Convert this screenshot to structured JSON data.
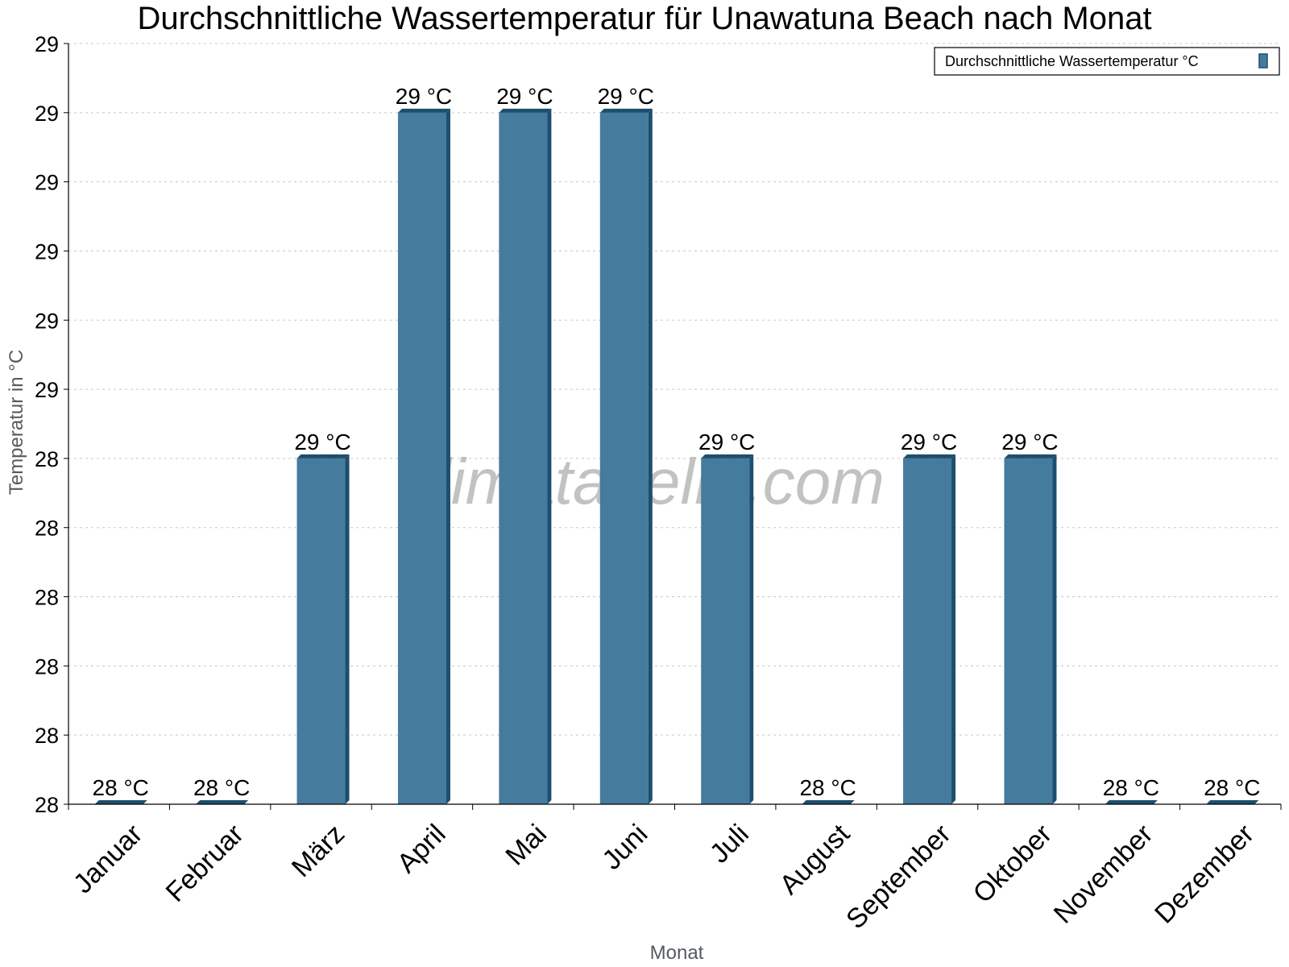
{
  "chart_data": {
    "type": "bar",
    "title": "Durchschnittliche Wassertemperatur für Unawatuna Beach nach Monat",
    "xlabel": "Monat",
    "ylabel": "Temperatur in °C",
    "categories": [
      "Januar",
      "Februar",
      "März",
      "April",
      "Mai",
      "Juni",
      "Juli",
      "August",
      "September",
      "Oktober",
      "November",
      "Dezember"
    ],
    "series": [
      {
        "name": "Durchschnittliche Wassertemperatur °C",
        "values": [
          28.0,
          28.0,
          28.5,
          29.0,
          29.0,
          29.0,
          28.5,
          28.0,
          28.5,
          28.5,
          28.0,
          28.0
        ],
        "labels": [
          "28 °C",
          "28 °C",
          "29 °C",
          "29 °C",
          "29 °C",
          "29 °C",
          "29 °C",
          "28 °C",
          "29 °C",
          "29 °C",
          "28 °C",
          "28 °C"
        ]
      }
    ],
    "ylim": [
      28.0,
      29.1
    ],
    "yticks": [
      28.0,
      28.1,
      28.2,
      28.3,
      28.4,
      28.5,
      28.6,
      28.7,
      28.8,
      28.9,
      29.0,
      29.1
    ],
    "ytick_labels": [
      "28",
      "28",
      "28",
      "28",
      "28",
      "28",
      "29",
      "29",
      "29",
      "29",
      "29",
      "29"
    ],
    "grid": true,
    "legend_position": "top-right",
    "colors": {
      "bar": "#457b9d",
      "bar_side": "#1d4e6e",
      "grid": "#c8c8c8",
      "axis": "#000000"
    }
  },
  "watermark": "klimatabelle.com"
}
